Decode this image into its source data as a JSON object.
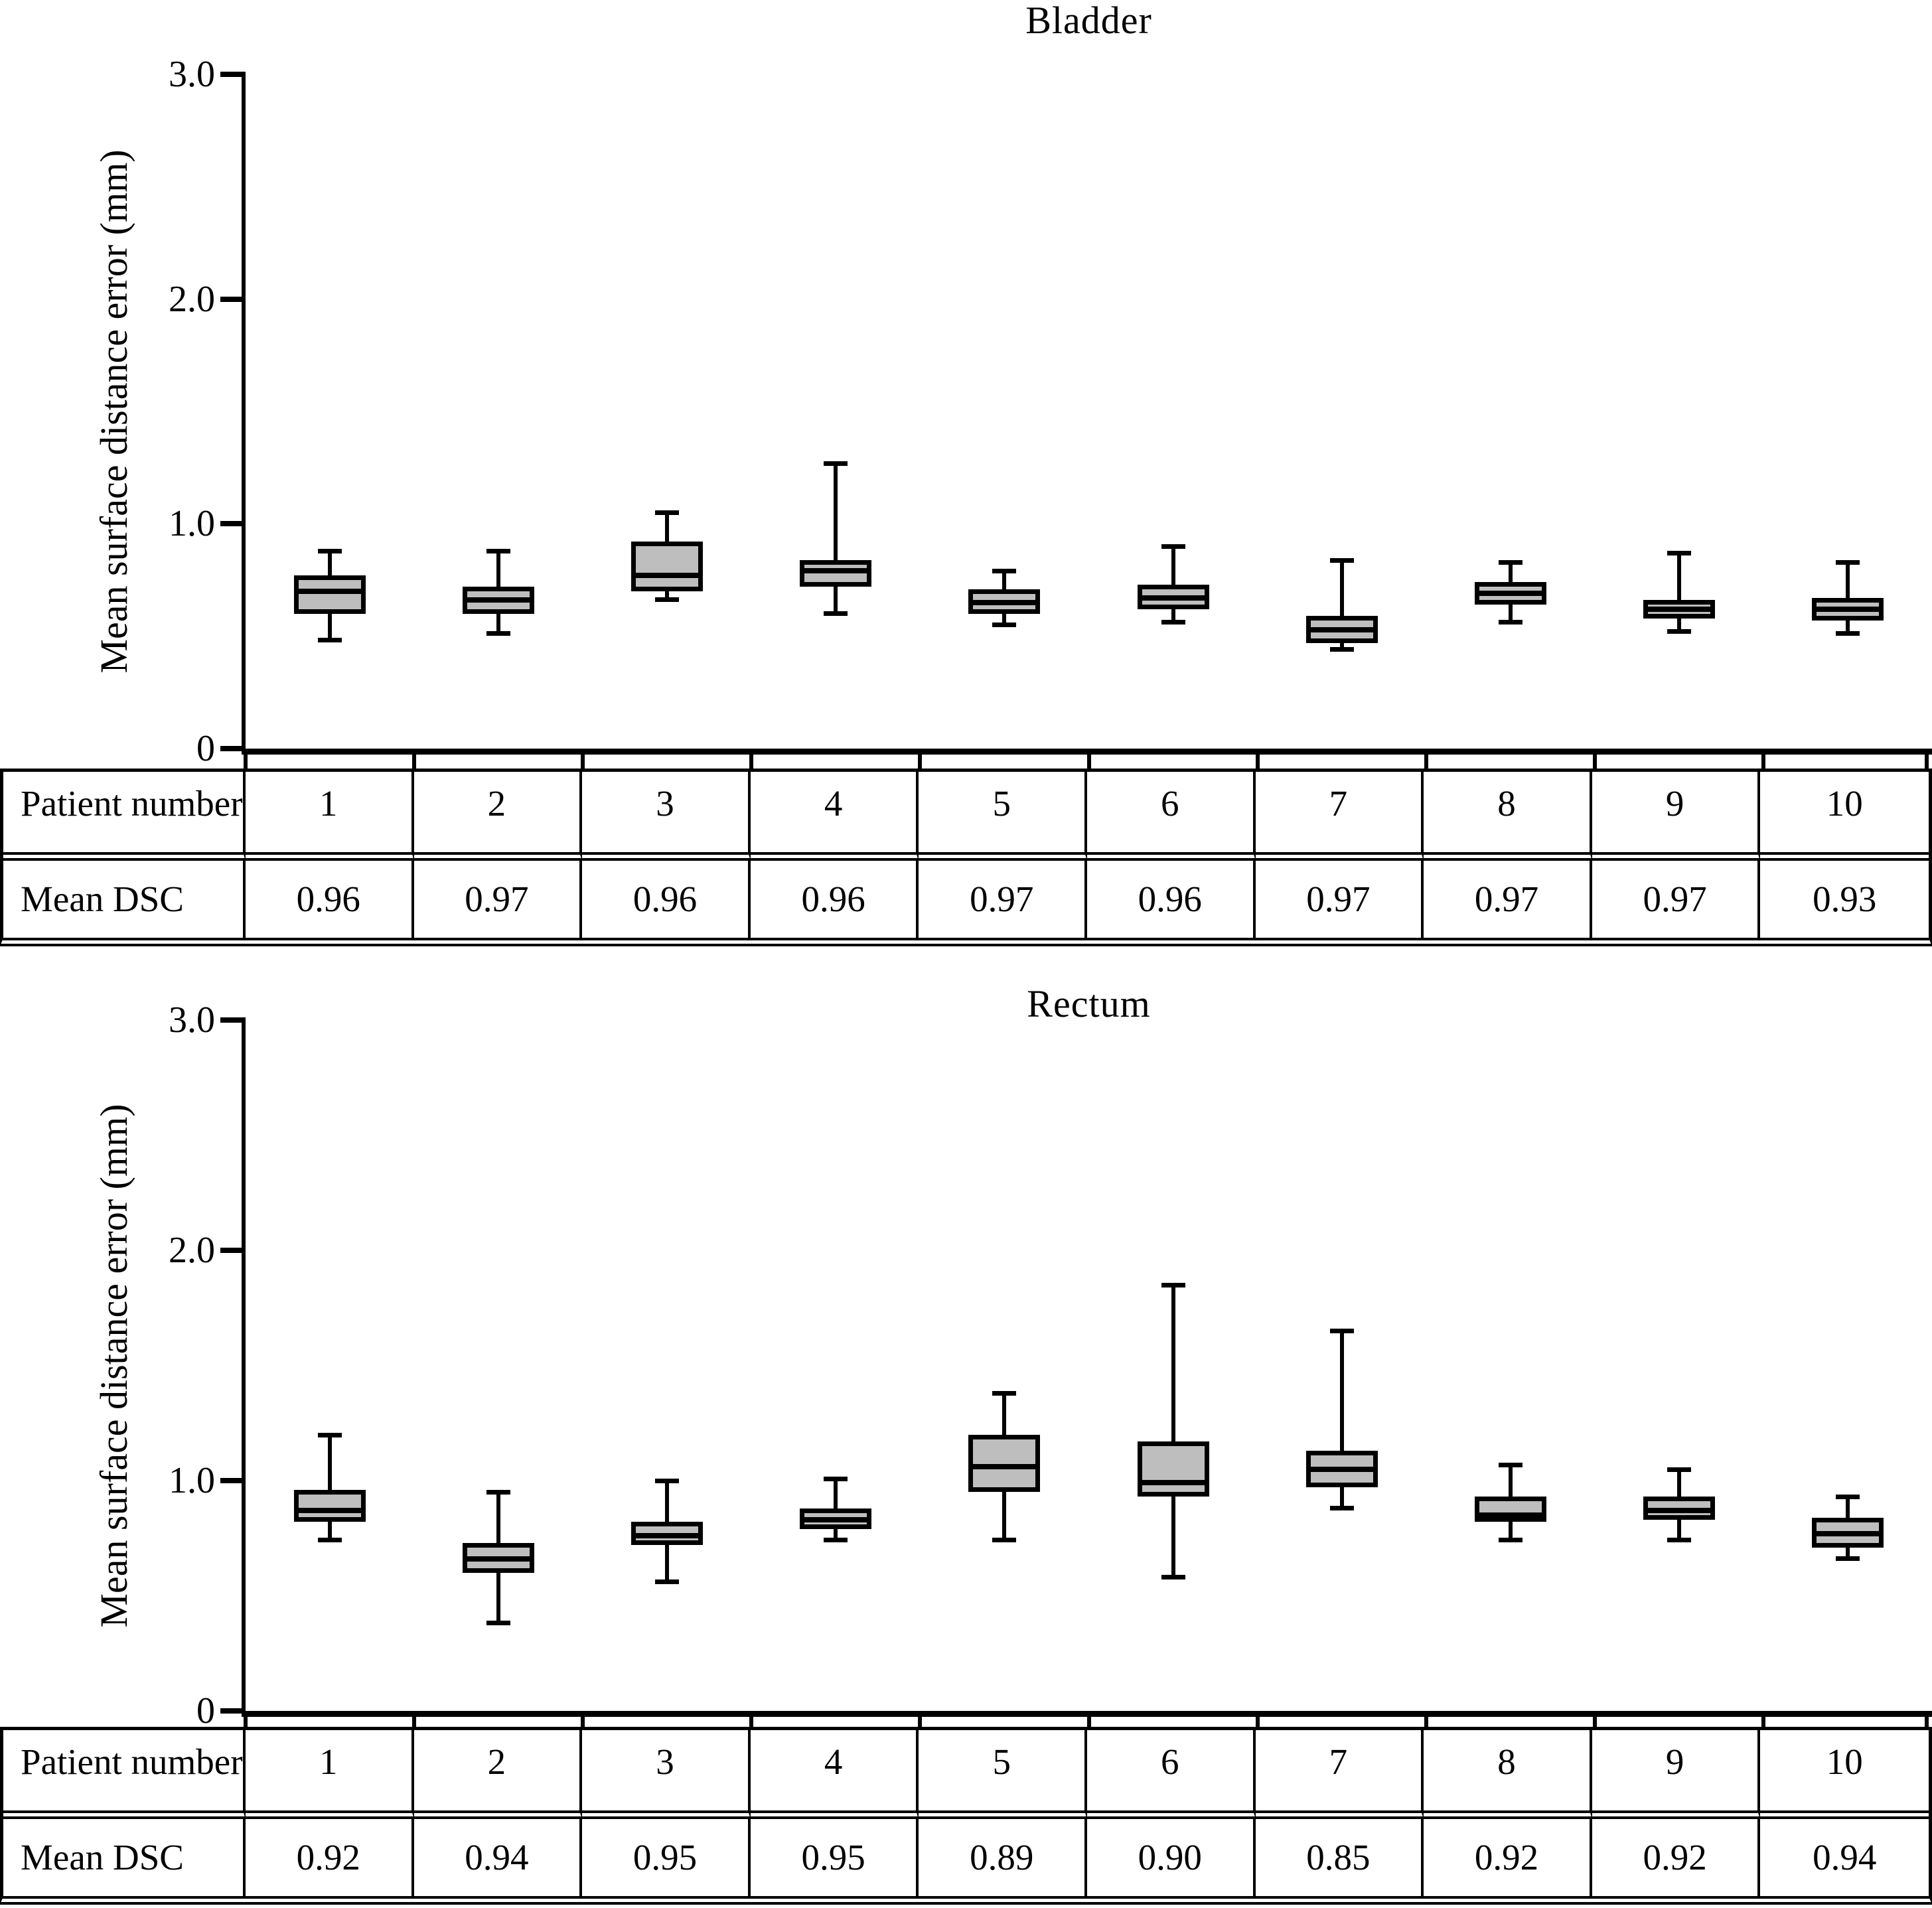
{
  "figure": {
    "background": "#ffffff",
    "line_color": "#000000",
    "box_fill_color": "#bebebe"
  },
  "charts": [
    {
      "title": "Bladder",
      "ylabel": "Mean surface distance error (mm)",
      "yticks": [
        {
          "label": "3.0",
          "value": 3.0
        },
        {
          "label": "2.0",
          "value": 2.0
        },
        {
          "label": "1.0",
          "value": 1.0
        },
        {
          "label": "0",
          "value": 0
        }
      ],
      "table": {
        "row1_label": "Patient number",
        "row2_label": "Mean DSC",
        "patient_numbers": [
          "1",
          "2",
          "3",
          "4",
          "5",
          "6",
          "7",
          "8",
          "9",
          "10"
        ],
        "mean_dsc": [
          "0.96",
          "0.97",
          "0.96",
          "0.96",
          "0.97",
          "0.96",
          "0.97",
          "0.97",
          "0.97",
          "0.93"
        ]
      }
    },
    {
      "title": "Rectum",
      "ylabel": "Mean surface distance error (mm)",
      "yticks": [
        {
          "label": "3.0",
          "value": 3.0
        },
        {
          "label": "2.0",
          "value": 2.0
        },
        {
          "label": "1.0",
          "value": 1.0
        },
        {
          "label": "0",
          "value": 0
        }
      ],
      "table": {
        "row1_label": "Patient number",
        "row2_label": "Mean DSC",
        "patient_numbers": [
          "1",
          "2",
          "3",
          "4",
          "5",
          "6",
          "7",
          "8",
          "9",
          "10"
        ],
        "mean_dsc": [
          "0.92",
          "0.94",
          "0.95",
          "0.95",
          "0.89",
          "0.90",
          "0.85",
          "0.92",
          "0.92",
          "0.94"
        ]
      }
    }
  ],
  "chart_data": [
    {
      "type": "box",
      "title": "Bladder",
      "xlabel": "Patient number",
      "ylabel": "Mean surface distance error (mm)",
      "ylim": [
        0,
        3
      ],
      "ytick_values": [
        0,
        1.0,
        2.0,
        3.0
      ],
      "grid": false,
      "categories": [
        1,
        2,
        3,
        4,
        5,
        6,
        7,
        8,
        9,
        10
      ],
      "boxes": [
        {
          "min": 0.48,
          "q1": 0.6,
          "median": 0.7,
          "q3": 0.77,
          "max": 0.88
        },
        {
          "min": 0.51,
          "q1": 0.6,
          "median": 0.66,
          "q3": 0.72,
          "max": 0.88
        },
        {
          "min": 0.66,
          "q1": 0.7,
          "median": 0.77,
          "q3": 0.92,
          "max": 1.05
        },
        {
          "min": 0.6,
          "q1": 0.72,
          "median": 0.79,
          "q3": 0.84,
          "max": 1.27
        },
        {
          "min": 0.55,
          "q1": 0.6,
          "median": 0.65,
          "q3": 0.71,
          "max": 0.79
        },
        {
          "min": 0.56,
          "q1": 0.62,
          "median": 0.67,
          "q3": 0.73,
          "max": 0.9
        },
        {
          "min": 0.44,
          "q1": 0.47,
          "median": 0.53,
          "q3": 0.59,
          "max": 0.84
        },
        {
          "min": 0.56,
          "q1": 0.64,
          "median": 0.69,
          "q3": 0.74,
          "max": 0.83
        },
        {
          "min": 0.52,
          "q1": 0.58,
          "median": 0.62,
          "q3": 0.66,
          "max": 0.87
        },
        {
          "min": 0.51,
          "q1": 0.57,
          "median": 0.62,
          "q3": 0.67,
          "max": 0.83
        }
      ],
      "mean_dsc": [
        0.96,
        0.97,
        0.96,
        0.96,
        0.97,
        0.96,
        0.97,
        0.97,
        0.97,
        0.93
      ]
    },
    {
      "type": "box",
      "title": "Rectum",
      "xlabel": "Patient number",
      "ylabel": "Mean surface distance error (mm)",
      "ylim": [
        0,
        3
      ],
      "ytick_values": [
        0,
        1.0,
        2.0,
        3.0
      ],
      "grid": false,
      "categories": [
        1,
        2,
        3,
        4,
        5,
        6,
        7,
        8,
        9,
        10
      ],
      "boxes": [
        {
          "min": 0.74,
          "q1": 0.82,
          "median": 0.87,
          "q3": 0.96,
          "max": 1.2
        },
        {
          "min": 0.38,
          "q1": 0.6,
          "median": 0.66,
          "q3": 0.73,
          "max": 0.95
        },
        {
          "min": 0.56,
          "q1": 0.72,
          "median": 0.76,
          "q3": 0.82,
          "max": 1.0
        },
        {
          "min": 0.74,
          "q1": 0.79,
          "median": 0.83,
          "q3": 0.88,
          "max": 1.01
        },
        {
          "min": 0.74,
          "q1": 0.95,
          "median": 1.06,
          "q3": 1.2,
          "max": 1.38
        },
        {
          "min": 0.58,
          "q1": 0.93,
          "median": 0.99,
          "q3": 1.17,
          "max": 1.85
        },
        {
          "min": 0.88,
          "q1": 0.97,
          "median": 1.05,
          "q3": 1.13,
          "max": 1.65
        },
        {
          "min": 0.74,
          "q1": 0.82,
          "median": 0.85,
          "q3": 0.93,
          "max": 1.07
        },
        {
          "min": 0.74,
          "q1": 0.83,
          "median": 0.87,
          "q3": 0.93,
          "max": 1.05
        },
        {
          "min": 0.66,
          "q1": 0.71,
          "median": 0.77,
          "q3": 0.84,
          "max": 0.93
        }
      ],
      "mean_dsc": [
        0.92,
        0.94,
        0.95,
        0.95,
        0.89,
        0.9,
        0.85,
        0.92,
        0.92,
        0.94
      ]
    }
  ]
}
